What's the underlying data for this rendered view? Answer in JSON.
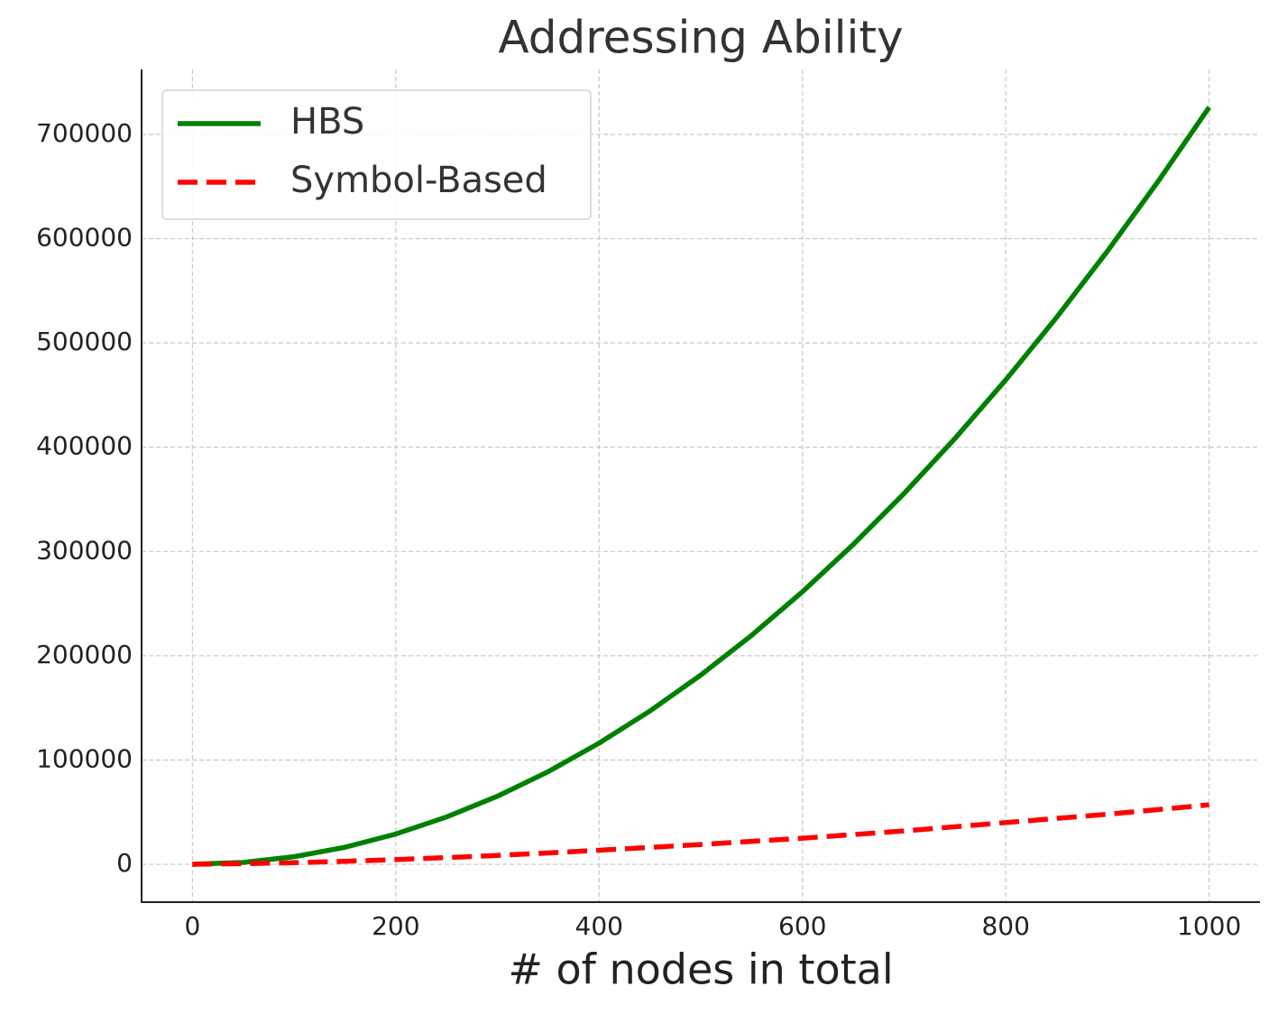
{
  "chart_data": {
    "type": "line",
    "title": "Addressing Ability",
    "x_label": "# of nodes in total",
    "x": [
      0,
      50,
      100,
      150,
      200,
      250,
      300,
      350,
      400,
      450,
      500,
      550,
      600,
      650,
      700,
      750,
      800,
      850,
      900,
      950,
      1000
    ],
    "series": [
      {
        "name": "HBS",
        "color": "#008000",
        "dash": "solid",
        "values": [
          0,
          1800,
          7300,
          16300,
          29000,
          45400,
          65300,
          88900,
          116200,
          147000,
          181500,
          219600,
          261400,
          306700,
          355700,
          408400,
          464600,
          524500,
          588100,
          655200,
          726000
        ]
      },
      {
        "name": "Symbol-Based",
        "color": "#ff0000",
        "dash": "dashed",
        "values": [
          0,
          600,
          1500,
          2900,
          4500,
          6400,
          8500,
          10900,
          13500,
          16200,
          19000,
          22000,
          25000,
          28500,
          32000,
          36000,
          40000,
          44000,
          48000,
          52500,
          57000
        ]
      }
    ],
    "xlim": [
      -50,
      1050
    ],
    "xticks": [
      0,
      200,
      400,
      600,
      800,
      1000
    ],
    "ylim": [
      -36300,
      762300
    ],
    "yticks": [
      0,
      100000,
      200000,
      300000,
      400000,
      500000,
      600000,
      700000
    ],
    "grid": true,
    "legend": "upper left"
  }
}
